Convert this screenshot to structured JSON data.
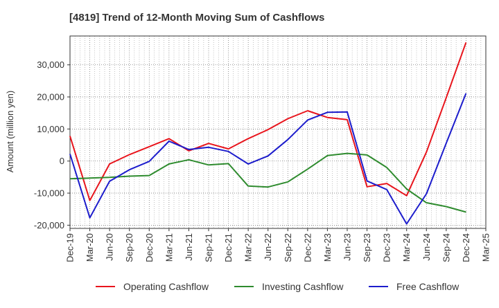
{
  "chart_data": {
    "type": "line",
    "title": "[4819]  Trend of 12-Month Moving Sum of Cashflows",
    "xlabel": "",
    "ylabel": "Amount (million yen)",
    "ylim": [
      -21000,
      39000
    ],
    "yticks": [
      -20000,
      -10000,
      0,
      10000,
      20000,
      30000
    ],
    "ytick_labels": [
      "-20,000",
      "-10,000",
      "0",
      "10,000",
      "20,000",
      "30,000"
    ],
    "categories": [
      "Dec-19",
      "Mar-20",
      "Jun-20",
      "Sep-20",
      "Dec-20",
      "Mar-21",
      "Jun-21",
      "Sep-21",
      "Dec-21",
      "Mar-22",
      "Jun-22",
      "Sep-22",
      "Dec-22",
      "Mar-23",
      "Jun-23",
      "Sep-23",
      "Dec-23",
      "Mar-24",
      "Jun-24",
      "Sep-24",
      "Dec-24",
      "Mar-25"
    ],
    "grid": true,
    "legend_position": "bottom",
    "series": [
      {
        "name": "Operating Cashflow",
        "color": "#e8141c",
        "values": [
          7800,
          -12300,
          -900,
          2000,
          4500,
          7000,
          3200,
          5500,
          3800,
          7000,
          9800,
          13200,
          15700,
          13600,
          12900,
          -8000,
          -7000,
          -10800,
          2800,
          19800,
          37000,
          null
        ]
      },
      {
        "name": "Investing Cashflow",
        "color": "#2e8b2e",
        "values": [
          -5500,
          -5300,
          -5100,
          -4700,
          -4500,
          -900,
          400,
          -1200,
          -800,
          -7800,
          -8100,
          -6500,
          -2500,
          1700,
          2400,
          1900,
          -2000,
          -8700,
          -13000,
          -14200,
          -15900,
          null
        ]
      },
      {
        "name": "Free Cashflow",
        "color": "#1c1ccc",
        "values": [
          2200,
          -17700,
          -6300,
          -2700,
          -100,
          6200,
          3600,
          4300,
          3000,
          -900,
          1600,
          6700,
          12800,
          15200,
          15300,
          -6200,
          -8900,
          -19600,
          -10200,
          5600,
          21100,
          null
        ]
      }
    ]
  }
}
